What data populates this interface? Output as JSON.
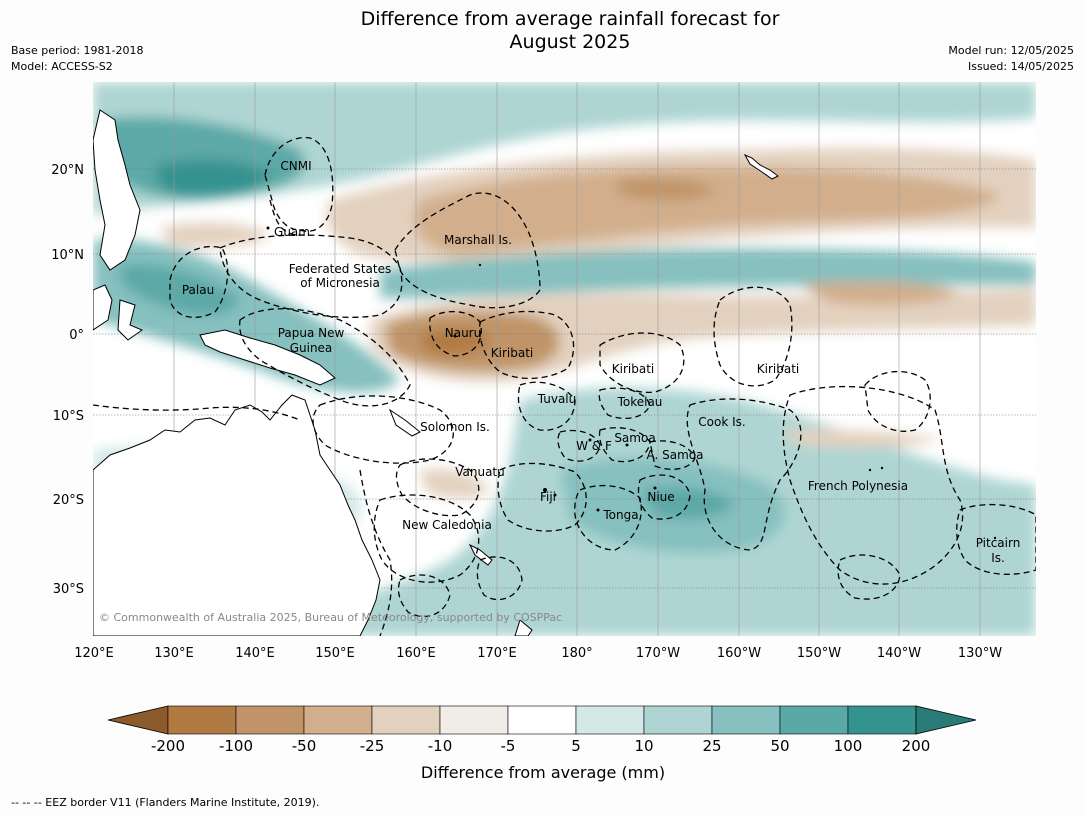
{
  "title": "Difference from average rainfall forecast for",
  "title_line2": "August 2025",
  "base_period": "Base period: 1981-2018",
  "model": "Model: ACCESS-S2",
  "model_run": "Model run: 12/05/2025",
  "issued": "Issued: 14/05/2025",
  "copyright": "© Commonwealth of Australia 2025, Bureau of Meteorology, supported by COSPPac",
  "footnote": "-- -- -- EEZ border V11 (Flanders Marine Institute, 2019).",
  "lat_labels": [
    "20°N",
    "10°N",
    "0°",
    "10°S",
    "20°S",
    "30°S"
  ],
  "lon_labels": [
    "120°E",
    "130°E",
    "140°E",
    "150°E",
    "160°E",
    "170°E",
    "180°",
    "170°W",
    "160°W",
    "150°W",
    "140°W",
    "130°W"
  ],
  "place_labels": {
    "cnmi": "CNMI",
    "guam": "Guam",
    "marshall": "Marshall Is.",
    "fsm1": "Federated States",
    "fsm2": "of Micronesia",
    "palau": "Palau",
    "png1": "Papua New",
    "png2": "Guinea",
    "nauru": "Nauru",
    "kiribati_w": "Kiribati",
    "kiribati_c": "Kiribati",
    "kiribati_e": "Kiribati",
    "tuvalu": "Tuvalu",
    "tokelau": "Tokelau",
    "cook": "Cook Is.",
    "solomon": "Solomon Is.",
    "samoa": "Samoa",
    "wf": "W & F",
    "asamoa": "A. Samoa",
    "vanuatu": "Vanuatu",
    "fiji": "Fiji",
    "niue": "Niue",
    "tonga": "Tonga",
    "fp": "French Polynesia",
    "newcal": "New Caledonia",
    "pitcairn1": "Pitcairn",
    "pitcairn2": "Is."
  },
  "colorbar": {
    "title": "Difference from average (mm)",
    "ticks": [
      "-200",
      "-100",
      "-50",
      "-25",
      "-10",
      "-5",
      "5",
      "10",
      "25",
      "50",
      "100",
      "200"
    ],
    "colors": [
      "#8c5a2b",
      "#b07a42",
      "#c09468",
      "#d2ae8c",
      "#e3d1bf",
      "#f1ece6",
      "#ffffff",
      "#d4e9e7",
      "#aed5d3",
      "#86c0bf",
      "#5ba9a7",
      "#35938f",
      "#2a7a77"
    ]
  },
  "colors": {
    "dry_strong": "#b07a42",
    "dry_moderate": "#d2ae8c",
    "dry_light": "#e3d1bf",
    "wet_light": "#d4e9e7",
    "wet_moderate": "#86c0bf",
    "wet_strong": "#35938f"
  }
}
